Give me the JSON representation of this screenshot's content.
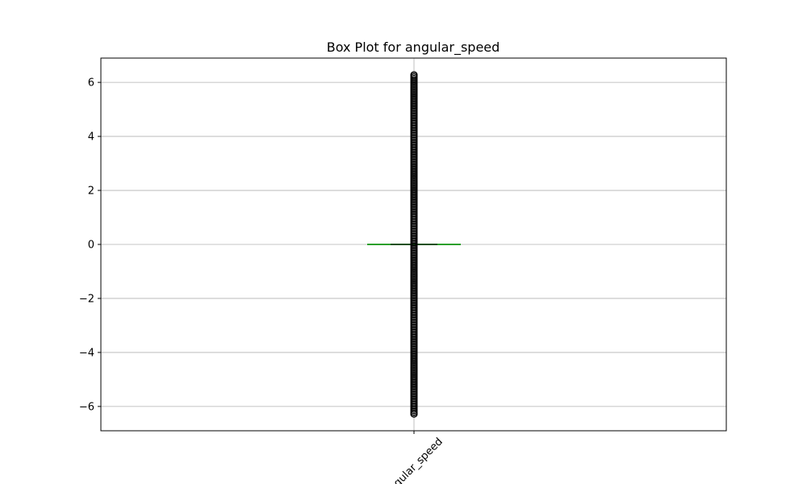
{
  "chart_data": {
    "type": "box",
    "title": "Box Plot for angular_speed",
    "xlabel": "",
    "ylabel": "",
    "categories": [
      "angular_speed"
    ],
    "ylim": [
      -6.9,
      6.9
    ],
    "yticks": [
      -6,
      -4,
      -2,
      0,
      2,
      4,
      6
    ],
    "ytick_labels": [
      "−6",
      "−4",
      "−2",
      "0",
      "2",
      "4",
      "6"
    ],
    "xtick_rotation_deg": -45,
    "grid": true,
    "box": {
      "whisker_low": 0,
      "q1": 0,
      "median": 0,
      "q3": 0,
      "whisker_high": 0
    },
    "outliers": {
      "min": -6.28,
      "max": 6.28,
      "dense": true,
      "note_range": [
        -6.28,
        6.28
      ]
    },
    "colors": {
      "median": "#2ca02c",
      "outlier_edge": "#000000",
      "grid": "#b0b0b0",
      "axes": "#000000"
    }
  }
}
